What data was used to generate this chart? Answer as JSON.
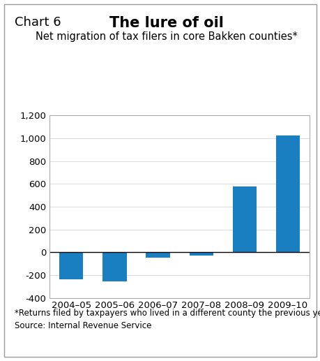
{
  "chart_label": "Chart 6",
  "title": "The lure of oil",
  "subtitle": "Net migration of tax filers in core Bakken counties*",
  "categories": [
    "2004–05",
    "2005–06",
    "2006–07",
    "2007–08",
    "2008–09",
    "2009–10"
  ],
  "values": [
    -240,
    -255,
    -45,
    -30,
    575,
    1025
  ],
  "bar_color": "#1a7fc0",
  "ylim": [
    -400,
    1200
  ],
  "yticks": [
    -400,
    -200,
    0,
    200,
    400,
    600,
    800,
    1000,
    1200
  ],
  "ytick_labels": [
    "-400",
    "-200",
    "0",
    "200",
    "400",
    "600",
    "800",
    "1,000",
    "1,200"
  ],
  "footnote": "*Returns filed by taxpayers who lived in a different county the previous year",
  "source": "Source: Internal Revenue Service",
  "background_color": "#ffffff",
  "title_fontsize": 15,
  "chart_label_fontsize": 13,
  "subtitle_fontsize": 10.5,
  "axis_fontsize": 9.5,
  "footnote_fontsize": 8.5
}
